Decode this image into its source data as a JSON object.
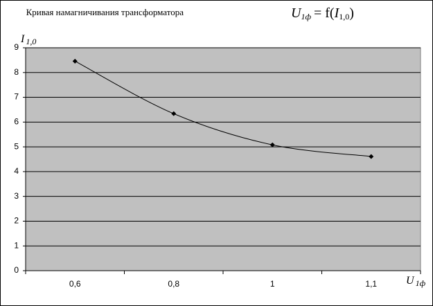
{
  "chart_data": {
    "type": "line",
    "title": "Кривая намагничивания трансформатора",
    "formula": {
      "lhs": "U",
      "lhs_sub": "1ф",
      "mid": "= f(",
      "arg": "I",
      "arg_sub": "1,0",
      "end": ")"
    },
    "y_label": {
      "text": "I",
      "sub": "1,0"
    },
    "x_label": {
      "text": "U",
      "sub": "1ф"
    },
    "categories": [
      "0,6",
      "0,8",
      "1",
      "1,1"
    ],
    "series": [
      {
        "name": "I1,0",
        "color": "#000000",
        "values": [
          8.46,
          6.34,
          5.08,
          4.61
        ]
      }
    ],
    "ylim": [
      0,
      9
    ],
    "yticks": [
      0,
      1,
      2,
      3,
      4,
      5,
      6,
      7,
      8,
      9
    ],
    "grid": true,
    "plot_background": "#c0c0c0"
  }
}
